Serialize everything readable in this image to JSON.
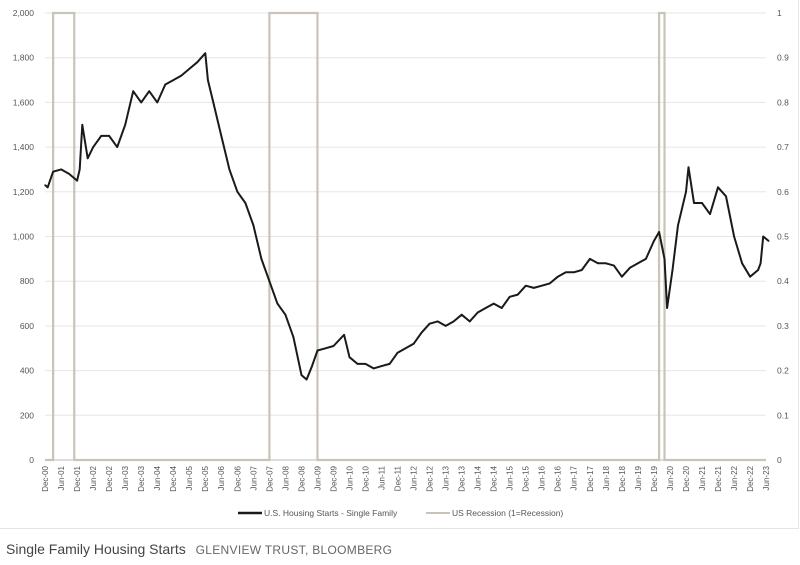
{
  "caption": {
    "title": "Single Family Housing Starts",
    "source": "GLENVIEW TRUST, BLOOMBERG"
  },
  "chart_data": {
    "type": "line",
    "title": "",
    "xlabel": "",
    "ylabel": "",
    "ylim": [
      0,
      2000
    ],
    "y2lim": [
      0,
      1
    ],
    "grid": true,
    "legend_position": "bottom",
    "y_ticks": [
      "0",
      "200",
      "400",
      "600",
      "800",
      "1,000",
      "1,200",
      "1,400",
      "1,600",
      "1,800",
      "2,000"
    ],
    "y2_ticks": [
      "0",
      "0.1",
      "0.2",
      "0.3",
      "0.4",
      "0.5",
      "0.6",
      "0.7",
      "0.8",
      "0.9",
      "1"
    ],
    "x_ticks": [
      "Dec-00",
      "Jun-01",
      "Dec-01",
      "Jun-02",
      "Dec-02",
      "Jun-03",
      "Dec-03",
      "Jun-04",
      "Dec-04",
      "Jun-05",
      "Dec-05",
      "Jun-06",
      "Dec-06",
      "Jun-07",
      "Dec-07",
      "Jun-08",
      "Dec-08",
      "Jun-09",
      "Dec-09",
      "Jun-10",
      "Dec-10",
      "Jun-11",
      "Dec-11",
      "Jun-12",
      "Dec-12",
      "Jun-13",
      "Dec-13",
      "Jun-14",
      "Dec-14",
      "Jun-15",
      "Dec-15",
      "Jun-16",
      "Dec-16",
      "Jun-17",
      "Dec-17",
      "Jun-18",
      "Dec-18",
      "Jun-19",
      "Dec-19",
      "Jun-20",
      "Dec-20",
      "Jun-21",
      "Dec-21",
      "Jun-22",
      "Dec-22",
      "Jun-23"
    ],
    "series": [
      {
        "name": "U.S. Housing Starts - Single Family",
        "color": "#1a1a1a",
        "x": [
          2000.92,
          2001.0,
          2001.17,
          2001.42,
          2001.67,
          2001.92,
          2002.0,
          2002.08,
          2002.25,
          2002.42,
          2002.67,
          2002.92,
          2003.17,
          2003.42,
          2003.67,
          2003.92,
          2004.17,
          2004.42,
          2004.67,
          2004.92,
          2005.17,
          2005.42,
          2005.67,
          2005.92,
          2006.0,
          2006.17,
          2006.42,
          2006.67,
          2006.92,
          2007.17,
          2007.42,
          2007.67,
          2007.92,
          2008.17,
          2008.42,
          2008.67,
          2008.92,
          2009.08,
          2009.25,
          2009.42,
          2009.67,
          2009.92,
          2010.25,
          2010.42,
          2010.67,
          2010.92,
          2011.17,
          2011.42,
          2011.67,
          2011.92,
          2012.17,
          2012.42,
          2012.67,
          2012.92,
          2013.17,
          2013.42,
          2013.67,
          2013.92,
          2014.17,
          2014.42,
          2014.67,
          2014.92,
          2015.17,
          2015.42,
          2015.67,
          2015.92,
          2016.17,
          2016.42,
          2016.67,
          2016.92,
          2017.17,
          2017.42,
          2017.67,
          2017.92,
          2018.17,
          2018.42,
          2018.67,
          2018.92,
          2019.17,
          2019.42,
          2019.67,
          2019.92,
          2020.08,
          2020.25,
          2020.33,
          2020.5,
          2020.67,
          2020.92,
          2021.0,
          2021.17,
          2021.42,
          2021.67,
          2021.92,
          2022.17,
          2022.42,
          2022.67,
          2022.92,
          2023.17,
          2023.25,
          2023.33,
          2023.5
        ],
        "values": [
          1230,
          1220,
          1290,
          1300,
          1280,
          1250,
          1300,
          1500,
          1350,
          1400,
          1450,
          1450,
          1400,
          1500,
          1650,
          1600,
          1650,
          1600,
          1680,
          1700,
          1720,
          1750,
          1780,
          1820,
          1700,
          1600,
          1450,
          1300,
          1200,
          1150,
          1050,
          900,
          800,
          700,
          650,
          550,
          380,
          360,
          420,
          490,
          500,
          510,
          560,
          460,
          430,
          430,
          410,
          420,
          430,
          480,
          500,
          520,
          570,
          610,
          620,
          600,
          620,
          650,
          620,
          660,
          680,
          700,
          680,
          730,
          740,
          780,
          770,
          780,
          790,
          820,
          840,
          840,
          850,
          900,
          880,
          880,
          870,
          820,
          860,
          880,
          900,
          980,
          1020,
          900,
          680,
          850,
          1050,
          1200,
          1310,
          1150,
          1150,
          1100,
          1220,
          1180,
          1000,
          880,
          820,
          850,
          880,
          1000,
          980
        ]
      },
      {
        "name": "US Recession (1=Recession)",
        "color": "#c9c3b8",
        "axis": "right",
        "periods": [
          [
            "Mar-01",
            "Nov-01"
          ],
          [
            "Dec-07",
            "Jun-09"
          ],
          [
            "Feb-20",
            "Apr-20"
          ]
        ],
        "periods_x": [
          [
            2001.17,
            2001.83
          ],
          [
            2007.92,
            2009.42
          ],
          [
            2020.08,
            2020.25
          ]
        ]
      }
    ]
  }
}
